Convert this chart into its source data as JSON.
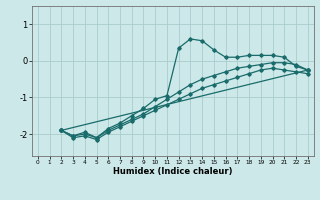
{
  "xlabel": "Humidex (Indice chaleur)",
  "bg_color": "#cce8e8",
  "grid_color": "#aacccc",
  "line_color": "#1a6b6b",
  "xlim": [
    -0.5,
    23.5
  ],
  "ylim": [
    -2.6,
    1.5
  ],
  "yticks": [
    -2,
    -1,
    0,
    1
  ],
  "xticks": [
    0,
    1,
    2,
    3,
    4,
    5,
    6,
    7,
    8,
    9,
    10,
    11,
    12,
    13,
    14,
    15,
    16,
    17,
    18,
    19,
    20,
    21,
    22,
    23
  ],
  "series": [
    {
      "x": [
        2,
        3,
        4,
        5,
        6,
        7,
        8,
        9,
        10,
        11,
        12,
        13,
        14,
        15,
        16,
        17,
        18,
        19,
        20,
        21,
        22,
        23
      ],
      "y": [
        -1.9,
        -2.05,
        -1.95,
        -2.1,
        -1.85,
        -1.7,
        -1.5,
        -1.3,
        -1.05,
        -0.95,
        0.35,
        0.6,
        0.55,
        0.3,
        0.1,
        0.1,
        0.15,
        0.15,
        0.15,
        0.1,
        -0.15,
        -0.25
      ]
    },
    {
      "x": [
        2,
        23
      ],
      "y": [
        -1.9,
        -0.25
      ]
    },
    {
      "x": [
        2,
        3,
        4,
        5,
        6,
        7,
        8,
        9,
        10,
        11,
        12,
        13,
        14,
        15,
        16,
        17,
        18,
        19,
        20,
        21,
        22,
        23
      ],
      "y": [
        -1.9,
        -2.05,
        -2.0,
        -2.1,
        -1.9,
        -1.75,
        -1.6,
        -1.45,
        -1.25,
        -1.05,
        -0.85,
        -0.65,
        -0.5,
        -0.4,
        -0.3,
        -0.2,
        -0.15,
        -0.1,
        -0.05,
        -0.05,
        -0.1,
        -0.25
      ]
    },
    {
      "x": [
        2,
        3,
        4,
        5,
        6,
        7,
        8,
        9,
        10,
        11,
        12,
        13,
        14,
        15,
        16,
        17,
        18,
        19,
        20,
        21,
        22,
        23
      ],
      "y": [
        -1.9,
        -2.1,
        -2.05,
        -2.15,
        -1.95,
        -1.8,
        -1.65,
        -1.5,
        -1.35,
        -1.2,
        -1.05,
        -0.9,
        -0.75,
        -0.65,
        -0.55,
        -0.45,
        -0.35,
        -0.25,
        -0.2,
        -0.25,
        -0.3,
        -0.35
      ]
    }
  ]
}
